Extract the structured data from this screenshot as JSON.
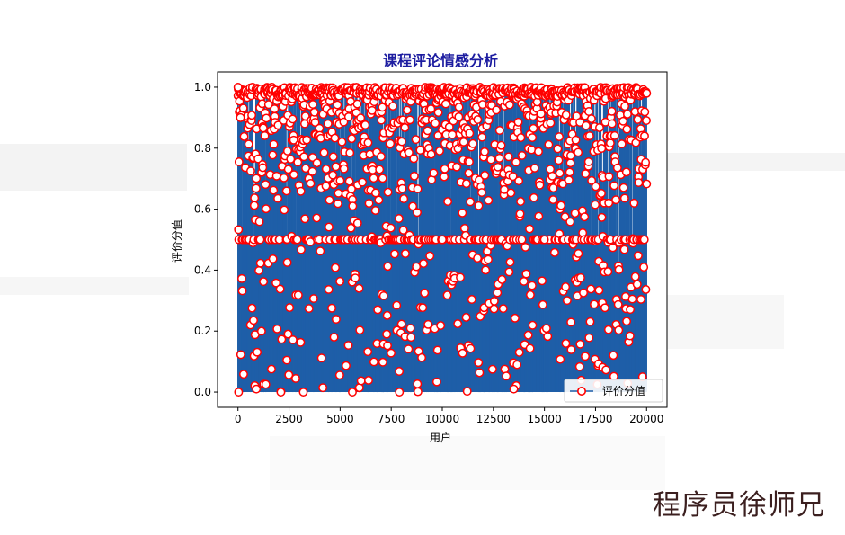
{
  "chart_data": {
    "type": "scatter",
    "title": "课程评论情感分析",
    "xlabel": "用户",
    "ylabel": "评价分值",
    "xlim": [
      -1000,
      21000
    ],
    "ylim": [
      -0.05,
      1.05
    ],
    "xticks": [
      0,
      2500,
      5000,
      7500,
      10000,
      12500,
      15000,
      17500,
      20000
    ],
    "yticks": [
      0.0,
      0.2,
      0.4,
      0.6,
      0.8,
      1.0
    ],
    "ytick_labels": [
      "0.0",
      "0.2",
      "0.4",
      "0.6",
      "0.8",
      "1.0"
    ],
    "legend": {
      "label": "评价分值",
      "position": "lower right"
    },
    "series": [
      {
        "name": "评价分值",
        "style": "stem with circle markers",
        "x_range": [
          0,
          20000
        ],
        "num_points": 20000,
        "y_distribution": "mostly 1.0, dense cluster at 0.5, spread between 0.0 and 1.0",
        "sample": [
          {
            "x": 0,
            "y": 1.0
          },
          {
            "x": 30,
            "y": 0.0
          },
          {
            "x": 120,
            "y": 0.9
          },
          {
            "x": 900,
            "y": 0.01
          },
          {
            "x": 2100,
            "y": 0.0
          },
          {
            "x": 3200,
            "y": 0.0
          },
          {
            "x": 5600,
            "y": 0.0
          },
          {
            "x": 7900,
            "y": 0.0
          },
          {
            "x": 10000,
            "y": 0.5
          },
          {
            "x": 13500,
            "y": 0.01
          },
          {
            "x": 15000,
            "y": 0.5
          },
          {
            "x": 19800,
            "y": 0.05
          },
          {
            "x": 20000,
            "y": 0.98
          }
        ]
      }
    ],
    "colors": {
      "stem": "#1f5fa8",
      "marker_edge": "#ff0000",
      "marker_fill": "#ffffff",
      "title": "#1c1ca0"
    },
    "grid": false
  },
  "watermark": "程序员徐师兄"
}
